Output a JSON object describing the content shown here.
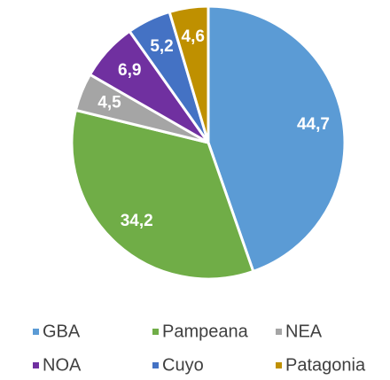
{
  "chart_data": {
    "type": "pie",
    "categories": [
      "GBA",
      "Pampeana",
      "NEA",
      "NOA",
      "Cuyo",
      "Patagonia"
    ],
    "values": [
      44.7,
      34.2,
      4.5,
      6.9,
      5.2,
      4.6
    ],
    "value_labels": [
      "44,7",
      "34,2",
      "4,5",
      "6,9",
      "5,2",
      "4,6"
    ],
    "colors": [
      "#5b9bd5",
      "#70ad47",
      "#a5a5a5",
      "#7030a0",
      "#4472c4",
      "#bf9000"
    ],
    "legend": "bottom"
  }
}
